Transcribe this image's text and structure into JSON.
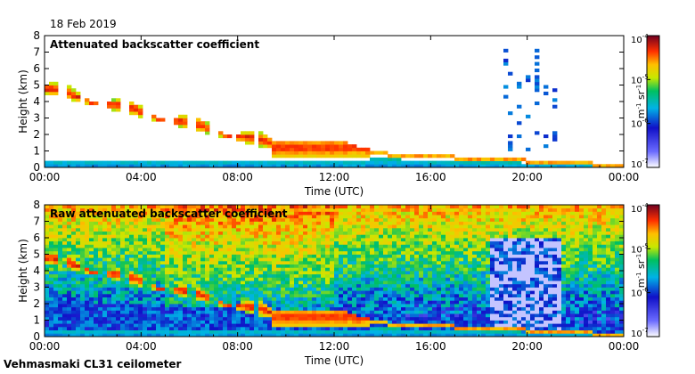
{
  "date_label": "18 Feb 2019",
  "footer": "Vehmasmaki CL31 ceilometer",
  "chart_data": [
    {
      "type": "heatmap",
      "title": "Attenuated backscatter coefficient",
      "xlabel": "Time (UTC)",
      "ylabel": "Height (km)",
      "xticks": [
        "00:00",
        "04:00",
        "08:00",
        "12:00",
        "16:00",
        "20:00",
        "00:00"
      ],
      "yticks": [
        "0",
        "1",
        "2",
        "3",
        "4",
        "5",
        "6",
        "7",
        "8"
      ],
      "xlim_hours": [
        0,
        24
      ],
      "ylim_km": [
        0,
        8
      ],
      "colorbar": {
        "unit": "m-1 sr-1",
        "ticks": [
          "10-7",
          "10-6",
          "10-5",
          "10-4"
        ],
        "log_min": -7,
        "log_max": -4
      },
      "features": [
        {
          "name": "sloping cloud layer",
          "hours": [
            0,
            9.5
          ],
          "height_km": [
            4.5,
            1.0
          ]
        },
        {
          "name": "low stratus",
          "hours": [
            9.5,
            13.5
          ],
          "height_km": [
            0.8,
            1.6
          ]
        },
        {
          "name": "descending boundary layer",
          "hours": [
            13.5,
            24
          ],
          "height_km": [
            0.6,
            0.1
          ]
        },
        {
          "name": "sparse high signal",
          "hours": [
            19,
            21.5
          ],
          "height_km": [
            1,
            7.5
          ]
        }
      ]
    },
    {
      "type": "heatmap",
      "title": "Raw attenuated backscatter coefficient",
      "xlabel": "Time (UTC)",
      "ylabel": "Height (km)",
      "xticks": [
        "00:00",
        "04:00",
        "08:00",
        "12:00",
        "16:00",
        "20:00",
        "00:00"
      ],
      "yticks": [
        "0",
        "1",
        "2",
        "3",
        "4",
        "5",
        "6",
        "7",
        "8"
      ],
      "xlim_hours": [
        0,
        24
      ],
      "ylim_km": [
        0,
        8
      ],
      "colorbar": {
        "unit": "m-1 sr-1",
        "ticks": [
          "10-7",
          "10-6",
          "10-5",
          "10-4"
        ],
        "log_min": -7,
        "log_max": -4
      },
      "features": [
        {
          "name": "noise field",
          "hours": [
            0,
            24
          ],
          "height_km": [
            2,
            8
          ]
        },
        {
          "name": "sloping cloud layer",
          "hours": [
            0,
            9.5
          ],
          "height_km": [
            4.5,
            1.0
          ]
        },
        {
          "name": "low stratus",
          "hours": [
            9.5,
            13.5
          ],
          "height_km": [
            0.8,
            1.6
          ]
        },
        {
          "name": "descending boundary layer",
          "hours": [
            13.5,
            24
          ],
          "height_km": [
            0.6,
            0.1
          ]
        }
      ]
    }
  ]
}
